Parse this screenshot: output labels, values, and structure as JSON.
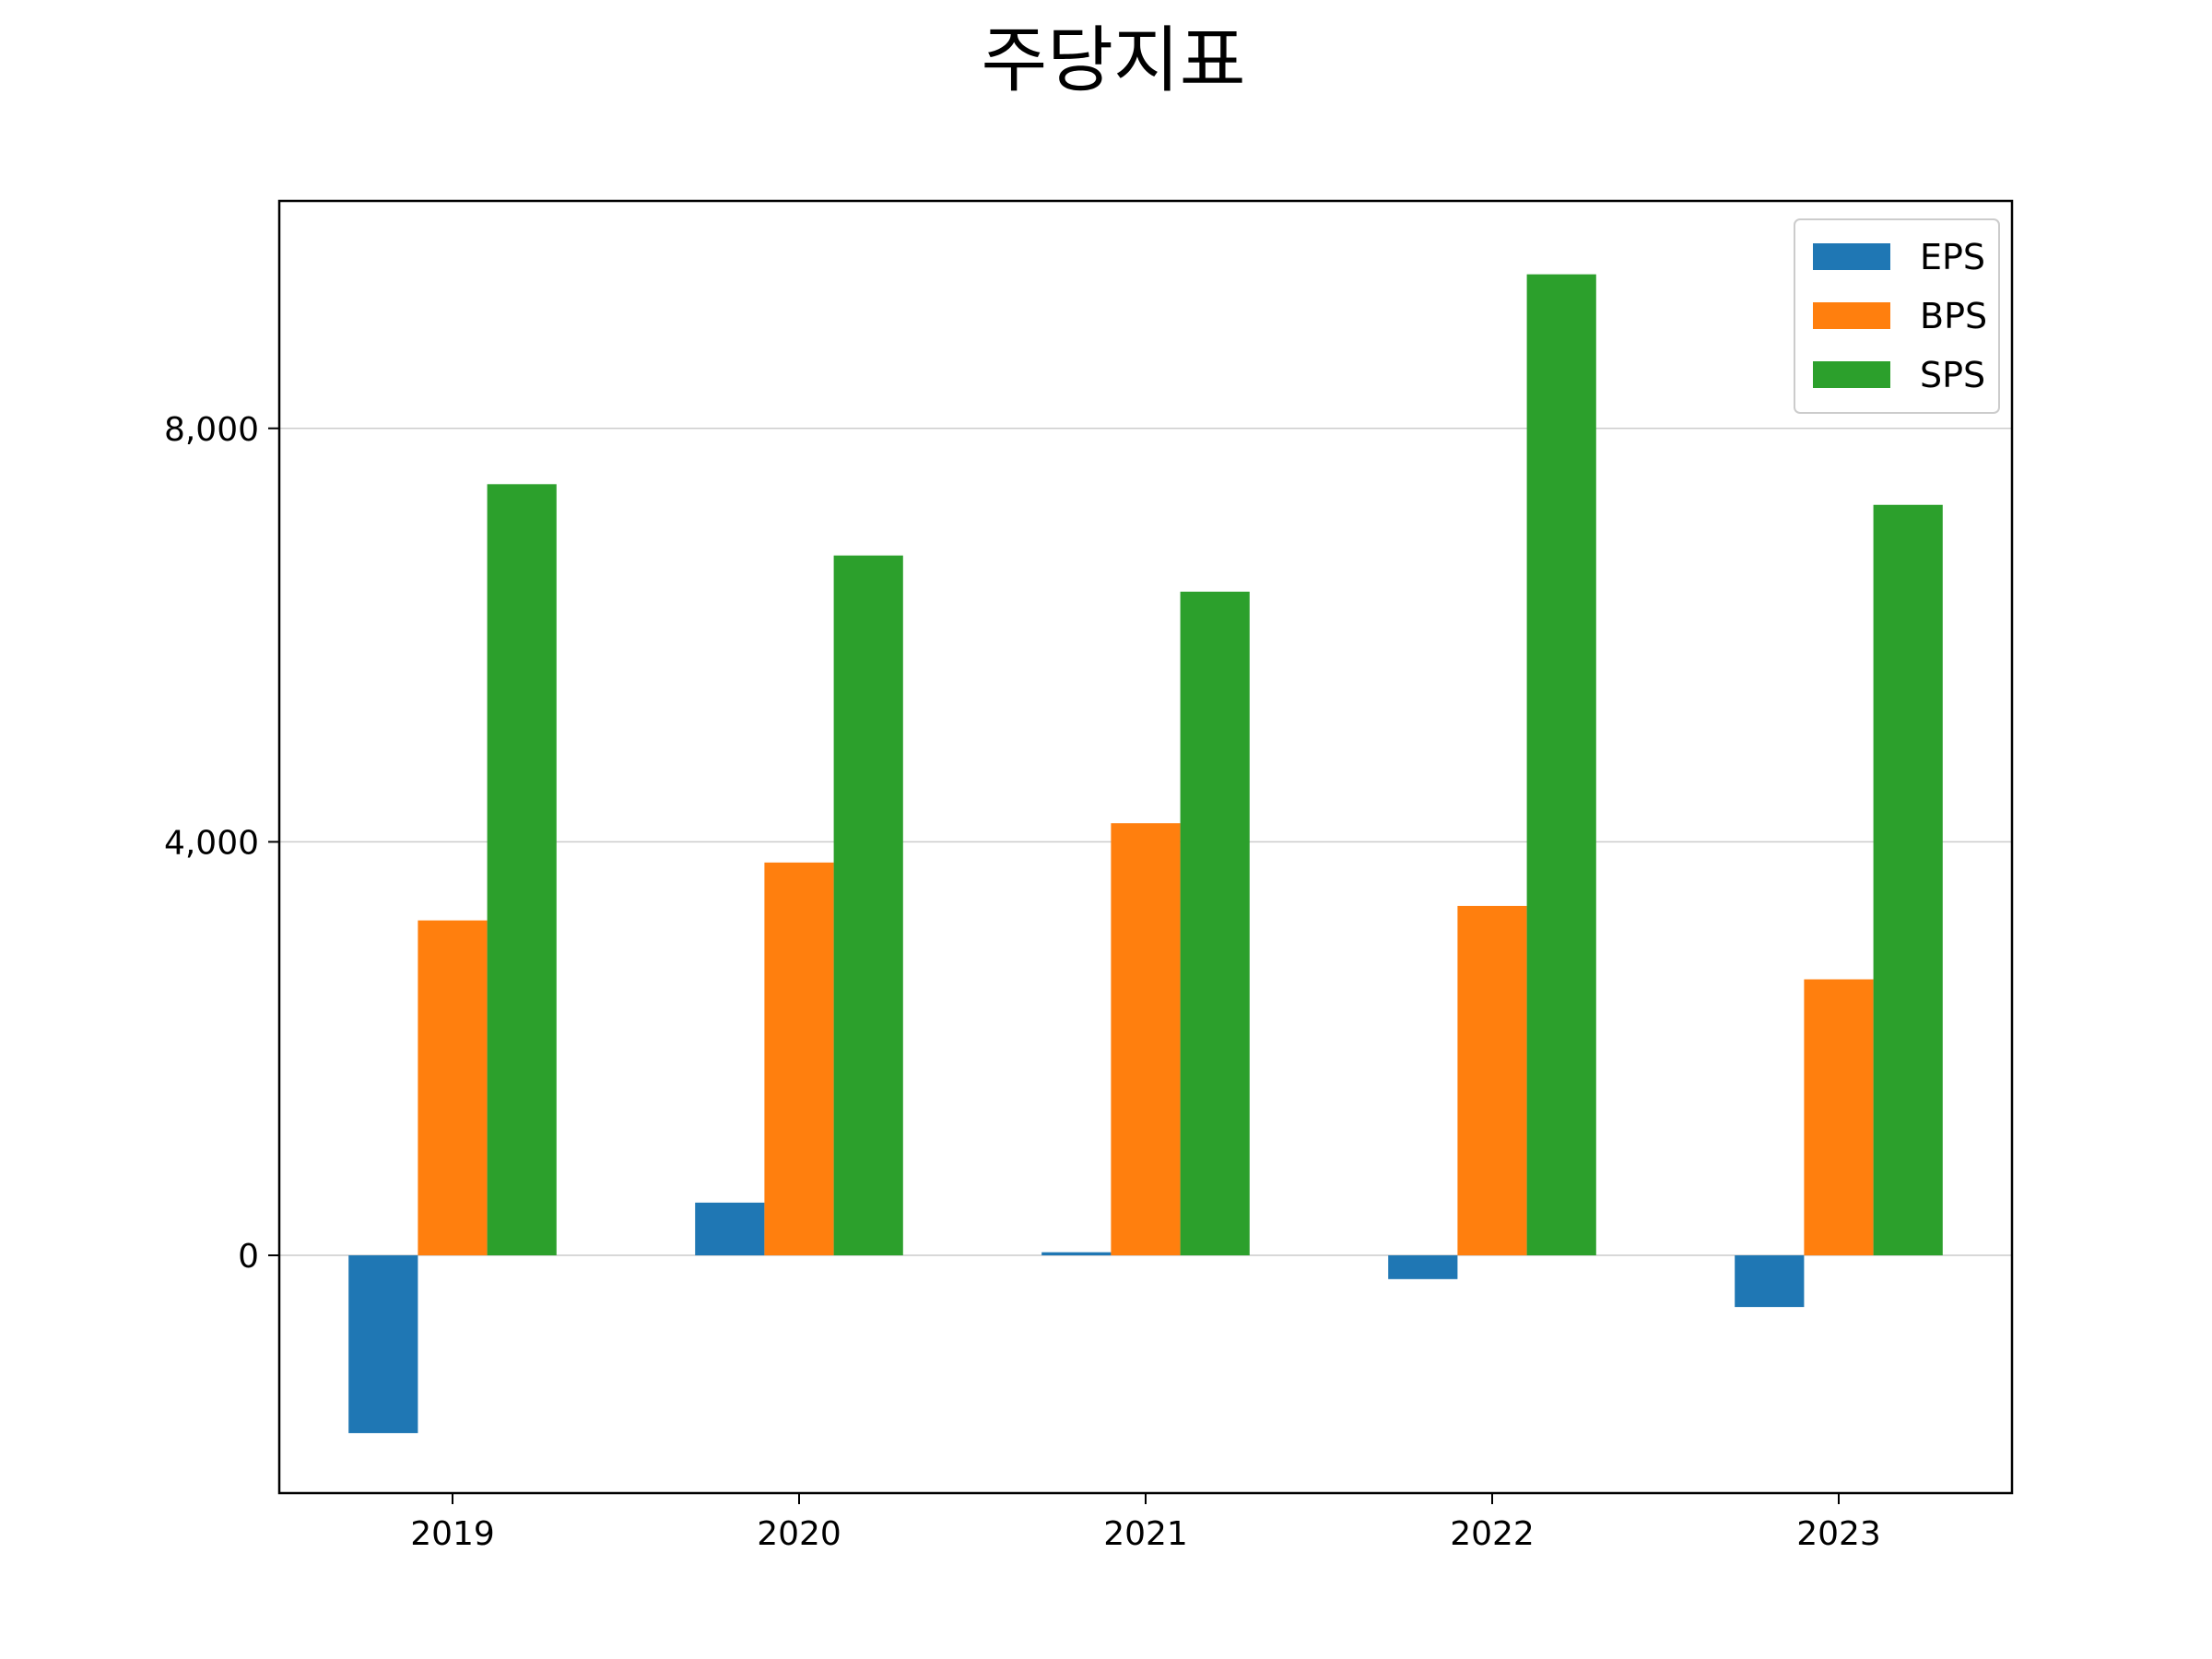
{
  "chart_data": {
    "type": "bar",
    "title": "주당지표",
    "xlabel": "",
    "ylabel": "",
    "categories": [
      "2019",
      "2020",
      "2021",
      "2022",
      "2023"
    ],
    "series": [
      {
        "name": "EPS",
        "color": "#1f77b4",
        "values": [
          -1720,
          510,
          30,
          -230,
          -500
        ]
      },
      {
        "name": "BPS",
        "color": "#ff7f0e",
        "values": [
          3240,
          3800,
          4180,
          3380,
          2670
        ]
      },
      {
        "name": "SPS",
        "color": "#2ca02c",
        "values": [
          7460,
          6770,
          6420,
          9490,
          7260
        ]
      }
    ],
    "ylim": [
      -2300,
      10200
    ],
    "yticks": [
      0,
      4000,
      8000
    ],
    "ytick_labels": [
      "0",
      "4,000",
      "8,000"
    ],
    "grid": "horizontal",
    "legend": "top-right"
  }
}
